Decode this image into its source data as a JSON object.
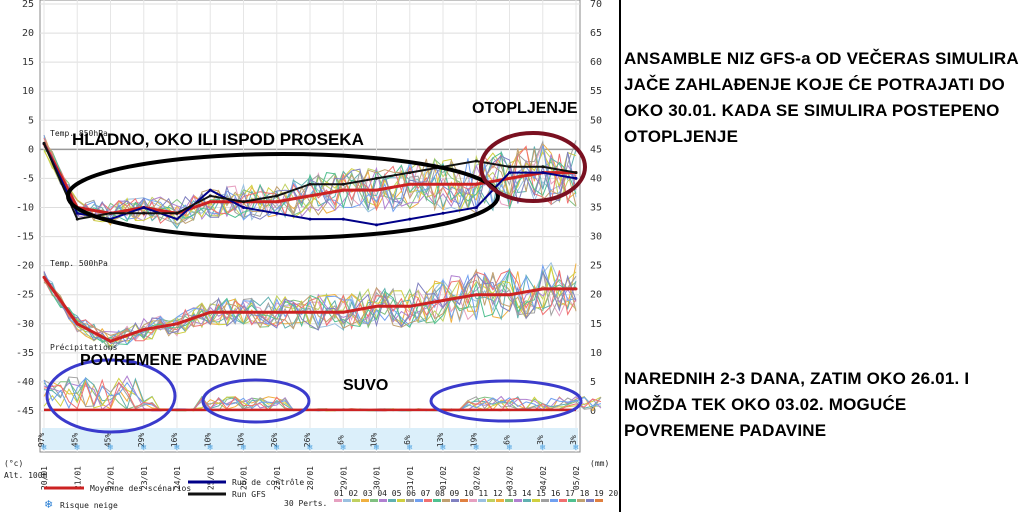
{
  "chart_data": [
    {
      "type": "line",
      "title": "Temp. 850hPa",
      "x": [
        "20/01",
        "21/01",
        "22/01",
        "23/01",
        "24/01",
        "25/01",
        "26/01",
        "27/01",
        "28/01",
        "29/01",
        "30/01",
        "31/01",
        "01/02",
        "02/02",
        "03/02",
        "04/02",
        "05/02"
      ],
      "ylim": [
        -15,
        5
      ],
      "series": [
        {
          "name": "Moyenne des scénarios",
          "color": "#cc2222",
          "values": [
            1,
            -10,
            -11,
            -10,
            -11,
            -9,
            -9,
            -9,
            -8,
            -7,
            -7,
            -6,
            -6,
            -6,
            -5,
            -4,
            -4
          ]
        },
        {
          "name": "Run de contrôle",
          "color": "#000088",
          "values": [
            1,
            -11,
            -12,
            -10,
            -12,
            -7,
            -10,
            -11,
            -12,
            -12,
            -13,
            -12,
            -11,
            -10,
            -4,
            -4,
            -5
          ]
        },
        {
          "name": "Run GFS",
          "color": "#111111",
          "values": [
            1,
            -12,
            -11,
            -11,
            -11,
            -8,
            -9,
            -8,
            -6,
            -6,
            -5,
            -4,
            -3,
            -2,
            -3,
            -3,
            -4
          ]
        }
      ]
    },
    {
      "type": "line",
      "title": "Temp. 500hPa",
      "x": [
        "20/01",
        "21/01",
        "22/01",
        "23/01",
        "24/01",
        "25/01",
        "26/01",
        "27/01",
        "28/01",
        "29/01",
        "30/01",
        "31/01",
        "01/02",
        "02/02",
        "03/02",
        "04/02",
        "05/02"
      ],
      "ylim": [
        -35,
        -20
      ],
      "series": [
        {
          "name": "Moyenne des scénarios",
          "color": "#cc2222",
          "values": [
            -22,
            -30,
            -33,
            -31,
            -30,
            -28,
            -28,
            -28,
            -28,
            -28,
            -27,
            -27,
            -26,
            -25,
            -25,
            -24,
            -24
          ]
        }
      ]
    },
    {
      "type": "bar",
      "title": "Précipitations",
      "x": [
        "20/01",
        "21/01",
        "22/01",
        "23/01",
        "24/01",
        "25/01",
        "26/01",
        "27/01",
        "28/01",
        "29/01",
        "30/01",
        "31/01",
        "01/02",
        "02/02",
        "03/02",
        "04/02",
        "05/02"
      ],
      "risk_percent": [
        "97%",
        "45%",
        "45%",
        "29%",
        "16%",
        "10%",
        "16%",
        "26%",
        "26%",
        "6%",
        "10%",
        "6%",
        "13%",
        "19%",
        "6%",
        "3%",
        "3%"
      ],
      "ylim": [
        0,
        5
      ]
    }
  ],
  "axes": {
    "left_ticks": [
      "25",
      "20",
      "15",
      "10",
      "5",
      "0",
      "-5",
      "-10",
      "-15",
      "-20",
      "-25",
      "-30",
      "-35",
      "-40",
      "-45"
    ],
    "right_ticks": [
      "70",
      "65",
      "60",
      "55",
      "50",
      "45",
      "40",
      "35",
      "30",
      "25",
      "20",
      "15",
      "10",
      "5",
      "0"
    ],
    "left_unit": "(°c)",
    "right_unit": "(mm)",
    "alt_label": "Alt. 100m"
  },
  "panel_labels": {
    "t850": "Temp. 850hPa",
    "t500": "Temp. 500hPa",
    "precip": "Précipitations"
  },
  "legend": {
    "mean": "Moyenne des scénarios",
    "control": "Run de contrôle",
    "gfs": "Run GFS",
    "perts": "30 Perts.",
    "snow": "Risque neige",
    "pert_numbers": "01 02 03 04 05 06 07 08 09 10 11 12 13 14 15 16 17 18 19 20 21 22 23 24 25 26 27 28 29 30",
    "colors": {
      "mean": "#cc2222",
      "control": "#000088",
      "gfs": "#111111"
    }
  },
  "annotations": {
    "cold": "HLADNO, OKO ILI ISPOD PROSEKA",
    "warm": "OTOPLJENJE",
    "precip": "POVREMENE PADAVINE",
    "dry": "SUVO"
  },
  "notes": {
    "top": "ANSAMBLE NIZ GFS-a OD VEČERAS SIMULIRA JAČE ZAHLAĐENJE KOJE ĆE POTRAJATI DO OKO 30.01. KADA SE SIMULIRA POSTEPENO OTOPLJENJE",
    "bottom": "NAREDNIH 2-3 DANA, ZATIM OKO 26.01. I MOŽDA TEK OKO 03.02. MOGUĆE POVREMENE PADAVINE"
  }
}
